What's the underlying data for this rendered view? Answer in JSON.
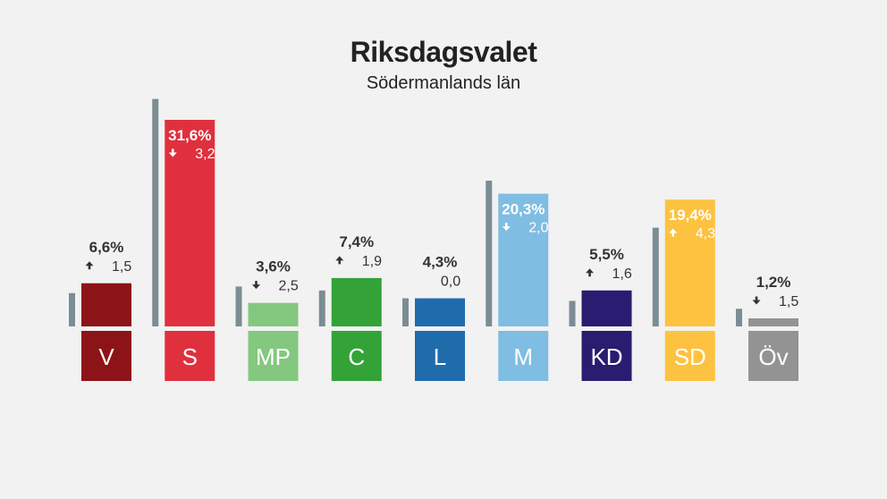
{
  "chart_data": {
    "type": "bar",
    "title": "Riksdagsvalet",
    "subtitle": "Södermanlands län",
    "categories": [
      "V",
      "S",
      "MP",
      "C",
      "L",
      "M",
      "KD",
      "SD",
      "Öv"
    ],
    "series": [
      {
        "values": [
          6.6,
          31.6,
          3.6,
          7.4,
          4.3,
          20.3,
          5.5,
          19.4,
          1.2
        ]
      },
      {
        "values": [
          5.1,
          34.8,
          6.1,
          5.5,
          4.3,
          22.3,
          3.9,
          15.1,
          2.7
        ]
      }
    ],
    "value_labels": [
      "6,6%",
      "31,6%",
      "3,6%",
      "7,4%",
      "4,3%",
      "20,3%",
      "5,5%",
      "19,4%",
      "1,2%"
    ],
    "change_labels": [
      "1,5",
      "3,2",
      "2,5",
      "1,9",
      "0,0",
      "2,0",
      "1,6",
      "4,3",
      "1,5"
    ],
    "change_direction": [
      "up",
      "down",
      "down",
      "up",
      "none",
      "down",
      "up",
      "up",
      "down"
    ],
    "label_inside": [
      false,
      true,
      false,
      false,
      false,
      true,
      false,
      true,
      false
    ],
    "colors": [
      "#8c1418",
      "#e0303e",
      "#84c77f",
      "#33a338",
      "#1f6cad",
      "#80bde2",
      "#2a1c70",
      "#fdc240",
      "#939393"
    ],
    "previous_color": "#7b8d93",
    "ylim": [
      0,
      35
    ]
  }
}
